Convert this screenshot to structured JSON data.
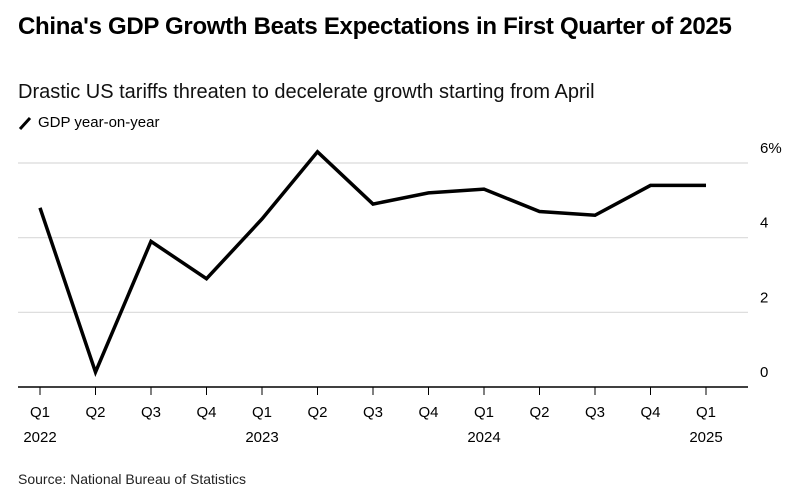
{
  "chart_data": {
    "type": "line",
    "title": "China's GDP Growth Beats Expectations in First Quarter of 2025",
    "subtitle": "Drastic US tariffs threaten to decelerate growth starting from April",
    "legend": [
      {
        "name": "GDP year-on-year",
        "placement": "top-left"
      }
    ],
    "categories": [
      "Q1",
      "Q2",
      "Q3",
      "Q4",
      "Q1",
      "Q2",
      "Q3",
      "Q4",
      "Q1",
      "Q2",
      "Q3",
      "Q4",
      "Q1"
    ],
    "year_labels": [
      "2022",
      "",
      "",
      "",
      "2023",
      "",
      "",
      "",
      "2024",
      "",
      "",
      "",
      "2025"
    ],
    "series": [
      {
        "name": "GDP year-on-year",
        "color": "#000000",
        "values": [
          4.8,
          0.4,
          3.9,
          2.9,
          4.5,
          6.3,
          4.9,
          5.2,
          5.3,
          4.7,
          4.6,
          5.4,
          5.4
        ]
      }
    ],
    "ylim": [
      0,
      6
    ],
    "yticks": [
      0,
      2,
      4,
      6
    ],
    "ytick_labels": [
      "0",
      "2",
      "4",
      "6%"
    ],
    "yaxis_side": "right",
    "grid": true,
    "xlabel": "",
    "ylabel": "",
    "source": "Source: National Bureau of Statistics"
  }
}
